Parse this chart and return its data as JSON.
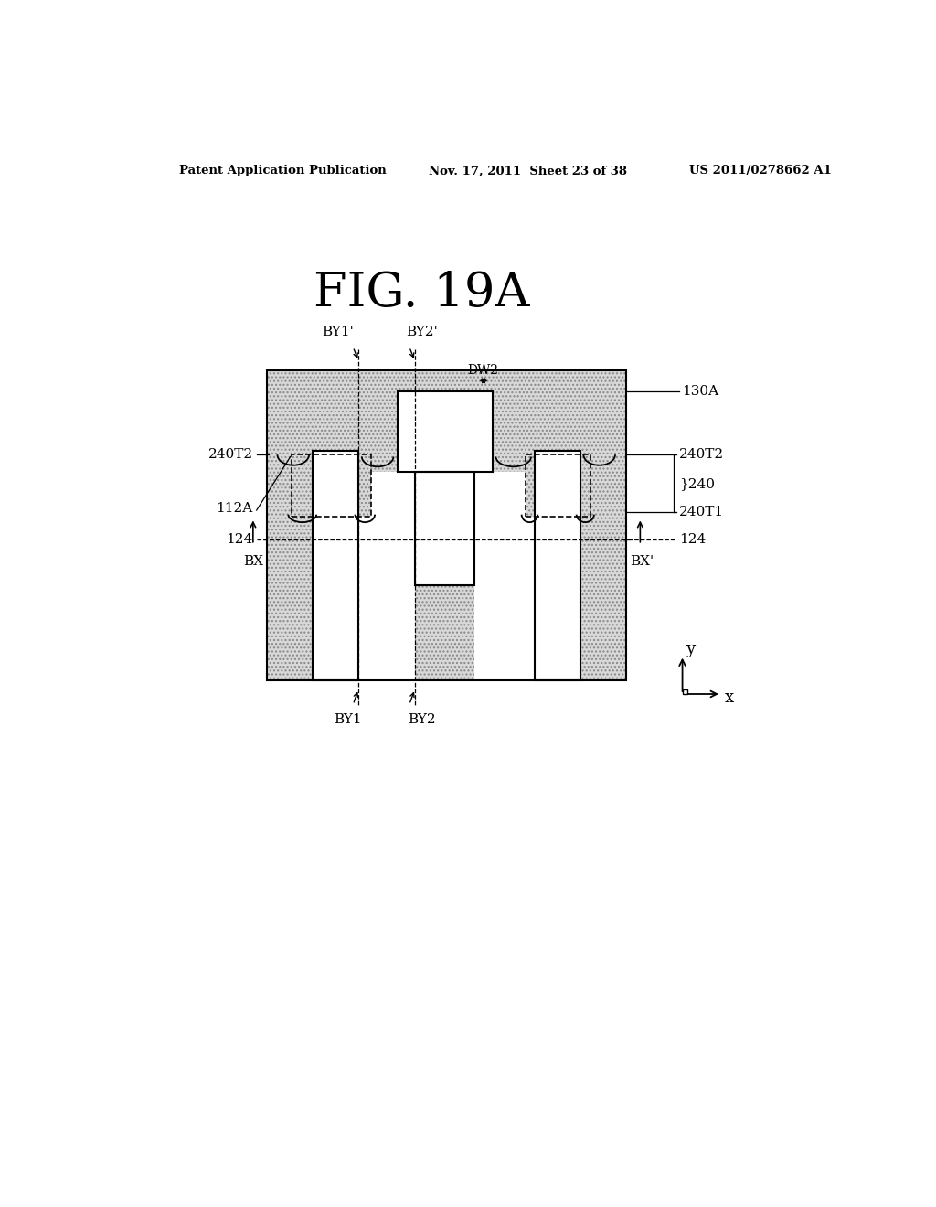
{
  "title": "FIG. 19A",
  "header_left": "Patent Application Publication",
  "header_center": "Nov. 17, 2011  Sheet 23 of 38",
  "header_right": "US 2011/0278662 A1",
  "bg_color": "#ffffff"
}
